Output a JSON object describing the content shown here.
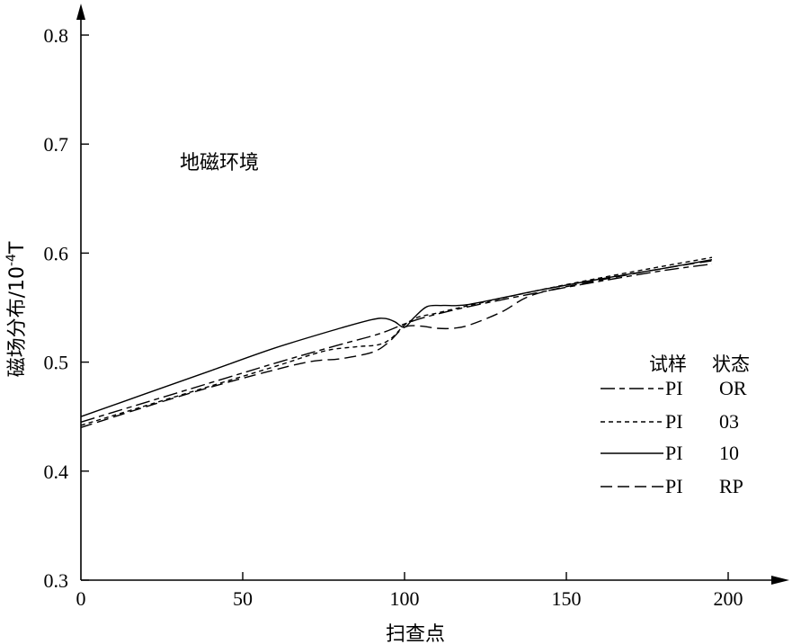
{
  "chart_data": {
    "type": "line",
    "title": "",
    "xlabel": "扫查点",
    "ylabel": "磁场分布/10⁻⁴T",
    "ylabel_main": "磁场分布/10",
    "ylabel_exp": "-4",
    "ylabel_unit": "T",
    "xlim": [
      0,
      210
    ],
    "ylim": [
      0.3,
      0.8
    ],
    "x_ticks": [
      0,
      50,
      100,
      150,
      200
    ],
    "y_ticks": [
      0.3,
      0.4,
      0.5,
      0.6,
      0.7,
      0.8
    ],
    "x_tick_labels": [
      "0",
      "50",
      "100",
      "150",
      "200"
    ],
    "y_tick_labels": [
      "0.3",
      "0.4",
      "0.5",
      "0.6",
      "0.7",
      "0.8"
    ],
    "grid": false,
    "legend_position": "right",
    "annotation": "地磁环境",
    "legend_header": {
      "sample": "试样",
      "state": "状态"
    },
    "series": [
      {
        "name": "PI OR",
        "sample": "PI",
        "state": "OR",
        "dash": "dash-dot-long",
        "x": [
          0,
          20,
          40,
          60,
          80,
          90,
          95,
          100,
          105,
          110,
          120,
          140,
          160,
          180,
          195
        ],
        "y": [
          0.445,
          0.463,
          0.481,
          0.499,
          0.516,
          0.524,
          0.529,
          0.535,
          0.54,
          0.544,
          0.551,
          0.563,
          0.574,
          0.584,
          0.59
        ]
      },
      {
        "name": "PI 03",
        "sample": "PI",
        "state": "03",
        "dash": "short-dash",
        "x": [
          0,
          20,
          40,
          60,
          75,
          85,
          92,
          96,
          100,
          104,
          110,
          120,
          140,
          160,
          180,
          195
        ],
        "y": [
          0.442,
          0.46,
          0.478,
          0.496,
          0.51,
          0.514,
          0.516,
          0.522,
          0.534,
          0.541,
          0.545,
          0.552,
          0.565,
          0.577,
          0.588,
          0.596
        ]
      },
      {
        "name": "PI 10",
        "sample": "PI",
        "state": "10",
        "dash": "solid",
        "x": [
          0,
          20,
          40,
          60,
          80,
          90,
          94,
          97,
          100,
          103,
          107,
          112,
          120,
          140,
          160,
          180,
          195
        ],
        "y": [
          0.45,
          0.471,
          0.492,
          0.513,
          0.531,
          0.539,
          0.54,
          0.537,
          0.532,
          0.541,
          0.551,
          0.552,
          0.553,
          0.565,
          0.576,
          0.586,
          0.594
        ]
      },
      {
        "name": "PI RP",
        "sample": "PI",
        "state": "RP",
        "dash": "long-dash",
        "x": [
          0,
          20,
          40,
          60,
          70,
          75,
          80,
          90,
          95,
          100,
          105,
          110,
          115,
          120,
          130,
          140,
          160,
          180,
          195
        ],
        "y": [
          0.44,
          0.459,
          0.477,
          0.493,
          0.5,
          0.502,
          0.503,
          0.509,
          0.518,
          0.532,
          0.533,
          0.531,
          0.531,
          0.534,
          0.546,
          0.562,
          0.575,
          0.586,
          0.593
        ]
      }
    ]
  }
}
